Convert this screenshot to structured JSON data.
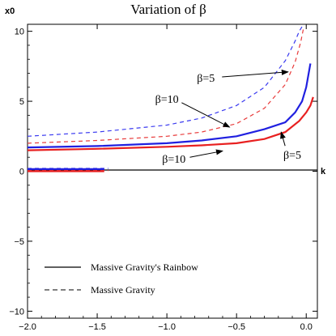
{
  "chart_data": {
    "type": "line",
    "title": "Variation of β",
    "xlabel": "k",
    "ylabel": "x0",
    "xlim": [
      -2.0,
      0.08
    ],
    "ylim": [
      -10.5,
      10.5
    ],
    "x_ticks": [
      -2.0,
      -1.5,
      -1.0,
      -0.5,
      0.0
    ],
    "x_tick_labels": [
      "−2.0",
      "−1.5",
      "−1.0",
      "−0.5",
      "0.0"
    ],
    "y_ticks": [
      -10,
      -5,
      0,
      5,
      10
    ],
    "y_tick_labels": [
      "−10",
      "−5",
      "0",
      "5",
      "10"
    ],
    "grid": false,
    "legend_position": "bottom-left",
    "legend": [
      {
        "label": "Massive Gravity's Rainbow",
        "style": "solid"
      },
      {
        "label": "Massive Gravity",
        "style": "dashed"
      }
    ],
    "series": [
      {
        "style": "dashed",
        "color": "#3a3af0",
        "x": [
          -2.0,
          -1.5,
          -1.0,
          -0.75,
          -0.5,
          -0.3,
          -0.15,
          -0.08,
          -0.05,
          -0.02
        ],
        "y": [
          2.5,
          2.8,
          3.3,
          3.8,
          4.7,
          6.0,
          7.9,
          9.3,
          10.0,
          10.5
        ]
      },
      {
        "style": "dashed",
        "color": "#e83a3a",
        "x": [
          -2.0,
          -1.5,
          -1.0,
          -0.75,
          -0.5,
          -0.3,
          -0.15,
          -0.08,
          -0.04,
          -0.02
        ],
        "y": [
          2.0,
          2.2,
          2.5,
          2.8,
          3.4,
          4.5,
          6.2,
          7.8,
          9.2,
          10.2
        ]
      },
      {
        "style": "solid",
        "color": "#2020e0",
        "x": [
          -2.0,
          -1.5,
          -1.0,
          -0.75,
          -0.5,
          -0.3,
          -0.15,
          -0.08,
          -0.03,
          0.0,
          0.03
        ],
        "y": [
          1.7,
          1.8,
          2.0,
          2.2,
          2.5,
          3.0,
          3.5,
          4.2,
          5.0,
          6.0,
          7.7
        ]
      },
      {
        "style": "solid",
        "color": "#e82020",
        "x": [
          -2.0,
          -1.5,
          -1.0,
          -0.75,
          -0.5,
          -0.3,
          -0.15,
          -0.05,
          0.0,
          0.03,
          0.05
        ],
        "y": [
          1.5,
          1.6,
          1.75,
          1.85,
          2.0,
          2.3,
          2.8,
          3.6,
          4.2,
          4.7,
          5.3
        ]
      },
      {
        "style": "dashed",
        "color": "#3a3af0",
        "x": [
          -2.0,
          -1.42
        ],
        "y": [
          0.2,
          0.2
        ]
      },
      {
        "style": "dashed",
        "color": "#e83a3a",
        "x": [
          -2.0,
          -1.42
        ],
        "y": [
          0.05,
          0.05
        ]
      },
      {
        "style": "solid",
        "color": "#2020e0",
        "x": [
          -2.0,
          -1.45
        ],
        "y": [
          0.15,
          0.15
        ]
      },
      {
        "style": "solid",
        "color": "#e82020",
        "x": [
          -2.0,
          -1.45
        ],
        "y": [
          0.0,
          0.0
        ]
      }
    ],
    "annotations": [
      {
        "text": "β=5",
        "x": -0.72,
        "y": 6.4,
        "arrow_to": [
          -0.13,
          7.1
        ]
      },
      {
        "text": "β=10",
        "x": -1.0,
        "y": 4.9,
        "arrow_to": [
          -0.55,
          3.15
        ]
      },
      {
        "text": "β=10",
        "x": -0.95,
        "y": 0.6,
        "arrow_to": [
          -0.6,
          1.45
        ]
      },
      {
        "text": "β=5",
        "x": -0.1,
        "y": 0.9,
        "arrow_to": [
          -0.18,
          2.8
        ]
      }
    ]
  }
}
